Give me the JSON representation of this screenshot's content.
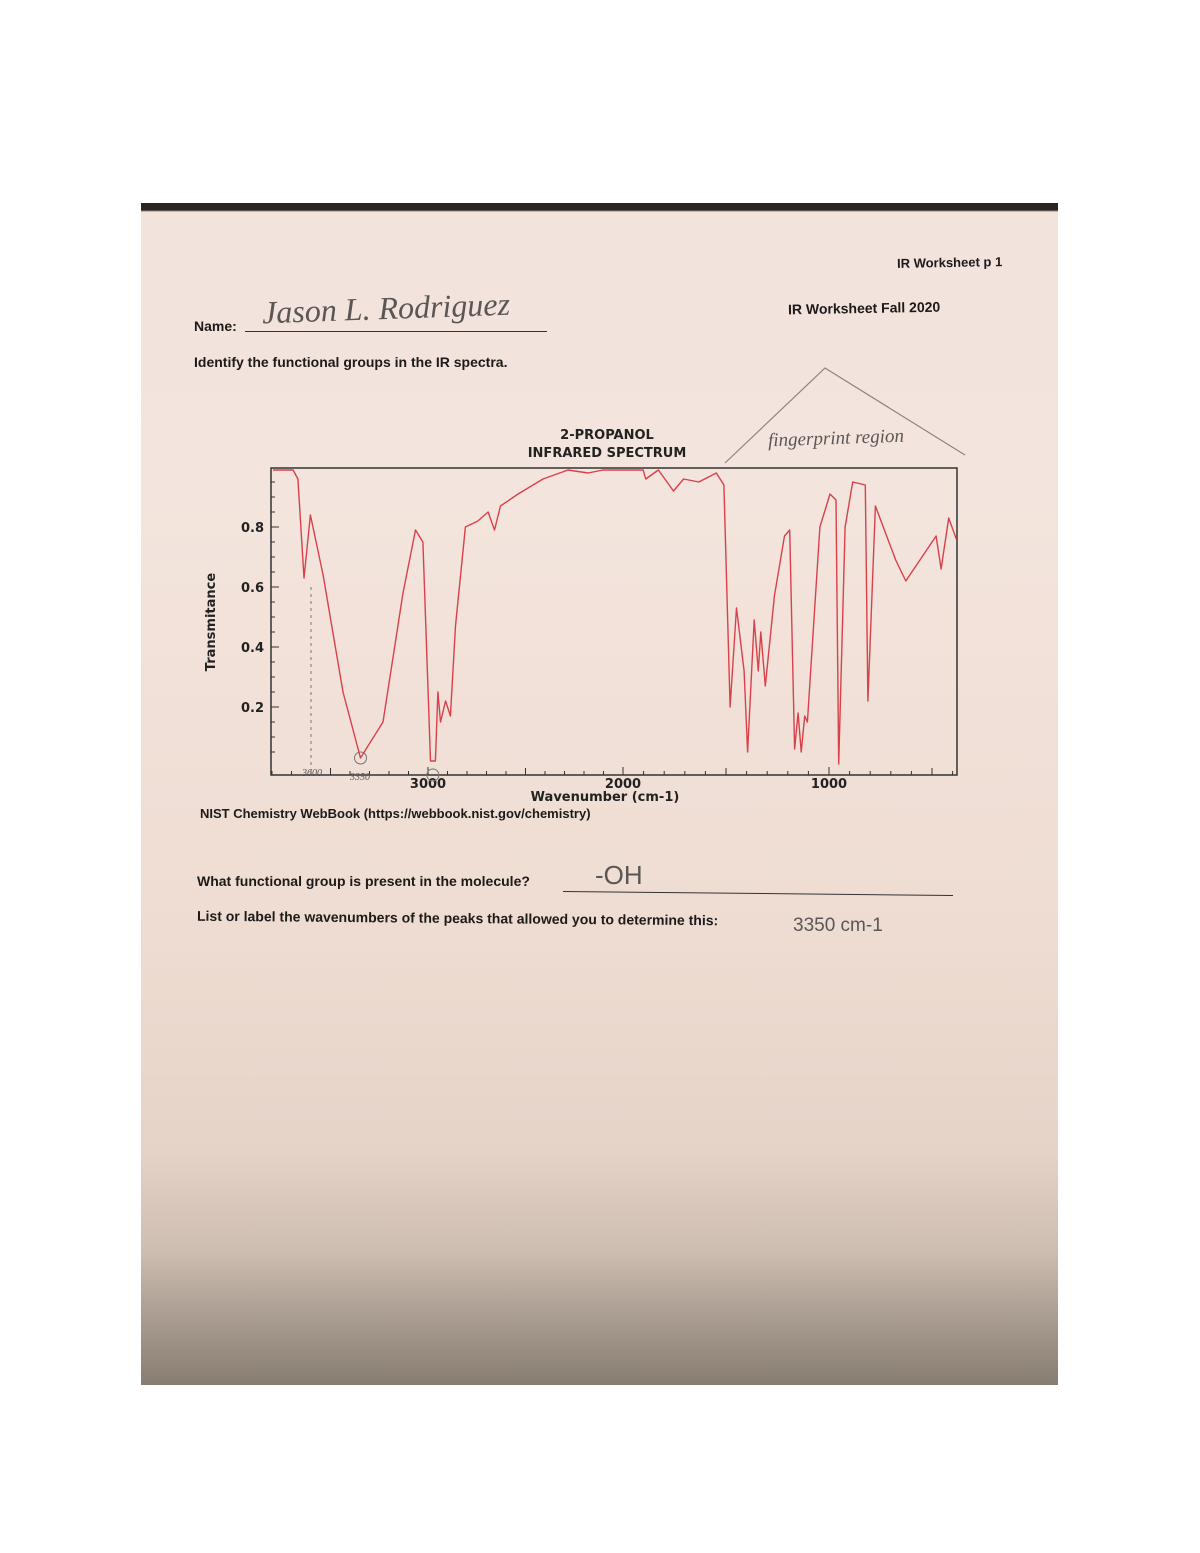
{
  "header": {
    "page_label": "IR Worksheet p 1",
    "title": "IR Worksheet Fall 2020"
  },
  "name": {
    "label": "Name:",
    "value": "Jason L. Rodriguez"
  },
  "instructions": "Identify the functional groups in the IR spectra.",
  "annotation": {
    "fingerprint": "fingerprint region",
    "peak1": "3600",
    "peak2": "3350"
  },
  "source": "NIST Chemistry WebBook (https://webbook.nist.gov/chemistry)",
  "questions": [
    {
      "label": "What functional group is present in the molecule?",
      "answer": "-OH"
    },
    {
      "label": "List or label the wavenumbers of the peaks that allowed you to determine this:",
      "answer": "3350 cm-1"
    }
  ],
  "chart_data": {
    "type": "line",
    "title": "2-PROPANOL",
    "subtitle": "INFRARED SPECTRUM",
    "xlabel": "Wavenumber (cm-1)",
    "ylabel": "Transmitance",
    "xlim": [
      3800,
      380
    ],
    "ylim": [
      0,
      1.0
    ],
    "x_ticks": [
      3000,
      2000,
      1000
    ],
    "y_ticks": [
      0.2,
      0.4,
      0.6,
      0.8
    ],
    "grid": false,
    "line_color": "#d9414a",
    "series": [
      {
        "x": [
          3795,
          3692,
          3667,
          3636,
          3603,
          3538,
          3436,
          3346,
          3231,
          3128,
          3064,
          3026,
          2987,
          2962,
          2949,
          2936,
          2910,
          2885,
          2859,
          2808,
          2744,
          2692,
          2659,
          2628,
          2538,
          2410,
          2282,
          2179,
          2103,
          2000,
          1902,
          1890,
          1828,
          1755,
          1706,
          1632,
          1547,
          1510,
          1480,
          1449,
          1412,
          1395,
          1363,
          1343,
          1331,
          1309,
          1265,
          1216,
          1191,
          1167,
          1150,
          1135,
          1118,
          1105,
          1044,
          995,
          966,
          953,
          922,
          885,
          824,
          811,
          775,
          676,
          627,
          480,
          456,
          419,
          382
        ],
        "y": [
          0.99,
          0.99,
          0.96,
          0.63,
          0.84,
          0.64,
          0.25,
          0.03,
          0.15,
          0.58,
          0.79,
          0.75,
          0.02,
          0.02,
          0.25,
          0.15,
          0.22,
          0.17,
          0.47,
          0.8,
          0.82,
          0.85,
          0.79,
          0.87,
          0.91,
          0.96,
          0.99,
          0.98,
          0.99,
          0.99,
          0.99,
          0.96,
          0.99,
          0.92,
          0.96,
          0.95,
          0.98,
          0.94,
          0.2,
          0.53,
          0.32,
          0.05,
          0.49,
          0.32,
          0.45,
          0.27,
          0.57,
          0.77,
          0.79,
          0.06,
          0.18,
          0.05,
          0.17,
          0.15,
          0.8,
          0.91,
          0.89,
          0.01,
          0.8,
          0.95,
          0.94,
          0.22,
          0.87,
          0.69,
          0.62,
          0.77,
          0.66,
          0.83,
          0.76
        ]
      }
    ]
  }
}
